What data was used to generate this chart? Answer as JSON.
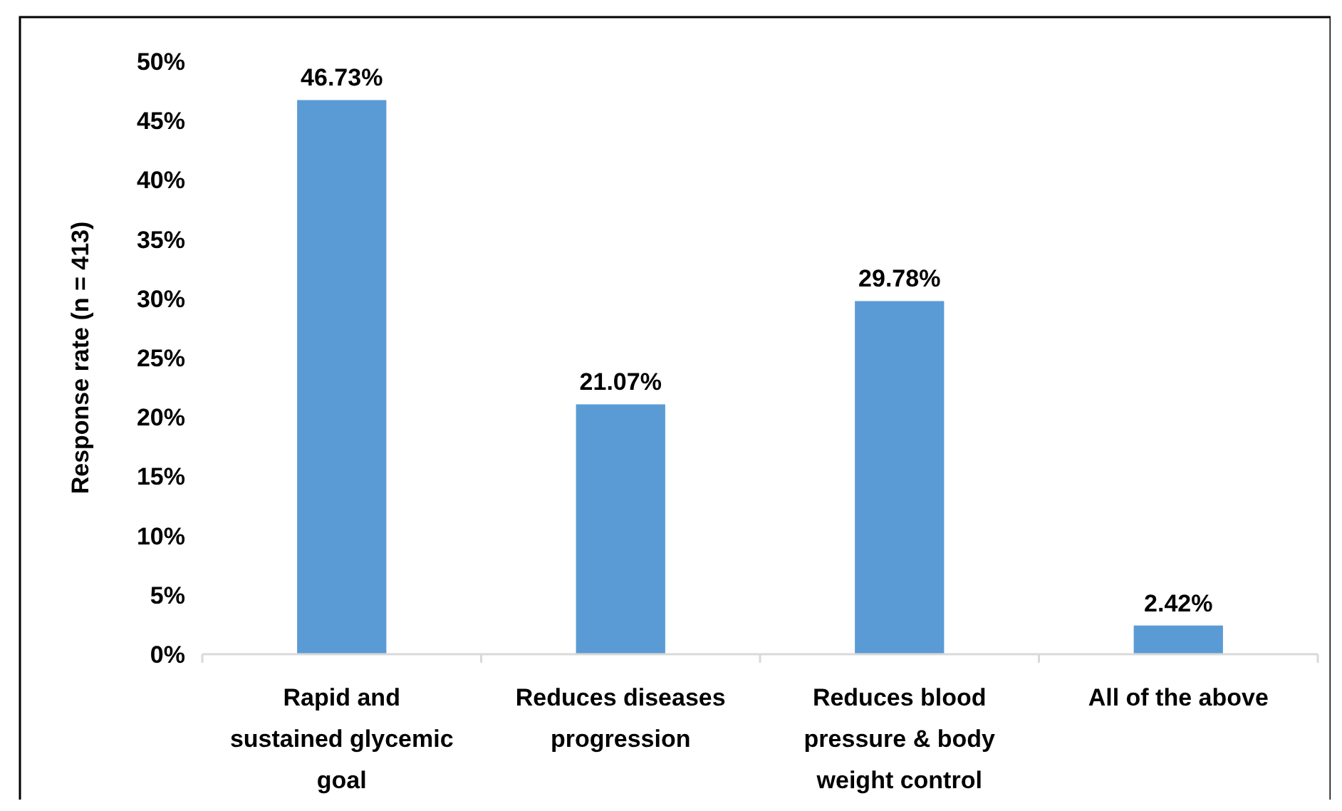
{
  "chart_data": {
    "type": "bar",
    "ylabel": "Response rate (n = 413)",
    "categories": [
      "Rapid and sustained glycemic goal",
      "Reduces diseases progression",
      "Reduces blood pressure & body weight control",
      "All of the above"
    ],
    "values": [
      46.73,
      21.07,
      29.78,
      2.42
    ],
    "value_labels": [
      "46.73%",
      "21.07%",
      "29.78%",
      "2.42%"
    ],
    "color": "#5b9bd5",
    "ylim": [
      0,
      50
    ],
    "yticks": [
      {
        "value": 0,
        "label": "0%"
      },
      {
        "value": 5,
        "label": "5%"
      },
      {
        "value": 10,
        "label": "10%"
      },
      {
        "value": 15,
        "label": "15%"
      },
      {
        "value": 20,
        "label": "20%"
      },
      {
        "value": 25,
        "label": "25%"
      },
      {
        "value": 30,
        "label": "30%"
      },
      {
        "value": 35,
        "label": "35%"
      },
      {
        "value": 40,
        "label": "40%"
      },
      {
        "value": 45,
        "label": "45%"
      },
      {
        "value": 50,
        "label": "50%"
      }
    ],
    "grid": false
  }
}
